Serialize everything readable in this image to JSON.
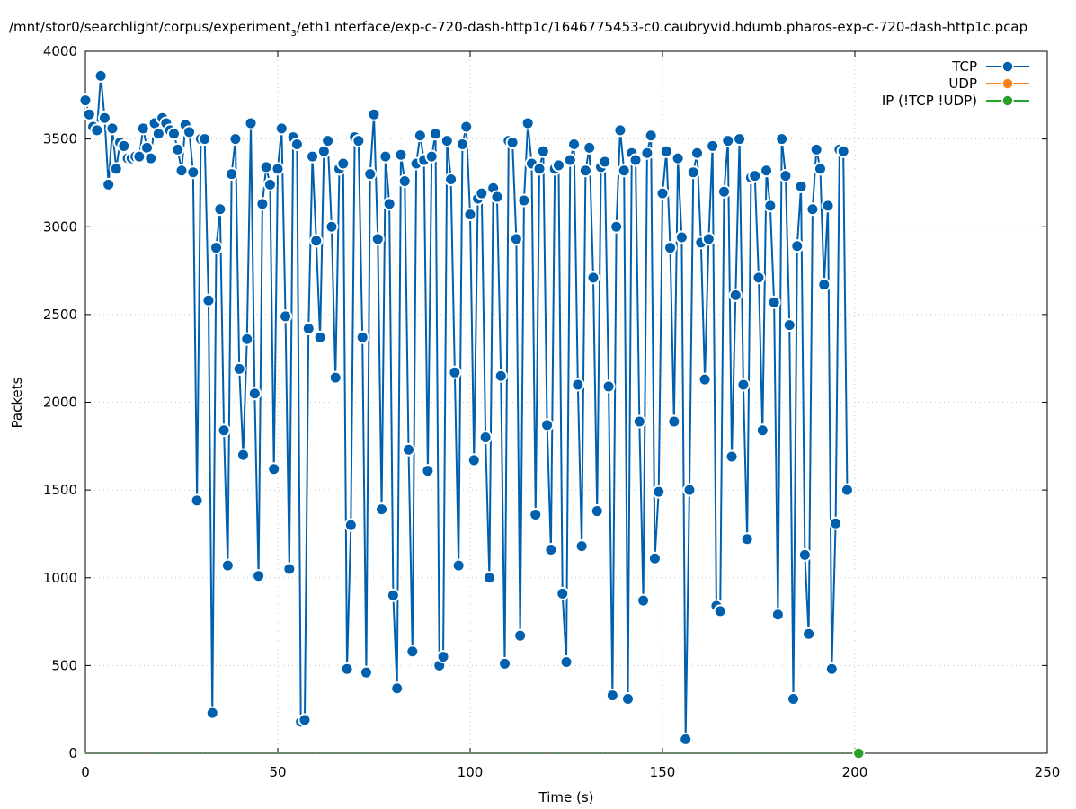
{
  "chart_data": {
    "type": "line",
    "title": "/mnt/stor0/searchlight/corpus/experiment_3/eth1_interface/exp-c-720-dash-http1c/1646775453-c0.caubryvid.hdumb.pharos-exp-c-720-dash-http1c.pcap",
    "title_parts": {
      "a": "/mnt/stor0/searchlight/corpus/experiment",
      "sub1": "3",
      "b": "/eth1",
      "sub2": "i",
      "c": "nterface/exp-c-720-dash-http1c/1646775453-c0.caubryvid.hdumb.pharos-exp-c-720-dash-http1c.pcap"
    },
    "xlabel": "Time (s)",
    "ylabel": "Packets",
    "xlim": [
      0,
      250
    ],
    "ylim": [
      0,
      4000
    ],
    "xticks": [
      "0",
      "50",
      "100",
      "150",
      "200",
      "250"
    ],
    "yticks": [
      "0",
      "500",
      "1000",
      "1500",
      "2000",
      "2500",
      "3000",
      "3500",
      "4000"
    ],
    "grid": true,
    "legend_position": "top-right",
    "series": [
      {
        "name": "TCP",
        "color": "#0060ad",
        "values": [
          3720,
          3640,
          3570,
          3550,
          3860,
          3620,
          3240,
          3560,
          3330,
          3480,
          3460,
          3390,
          3390,
          3400,
          3400,
          3560,
          3450,
          3390,
          3590,
          3530,
          3620,
          3590,
          3550,
          3530,
          3440,
          3320,
          3580,
          3540,
          3310,
          1440,
          3500,
          3500,
          2580,
          230,
          2880,
          3100,
          1840,
          1070,
          3300,
          3500,
          2190,
          1700,
          2360,
          3590,
          2050,
          1010,
          3130,
          3340,
          3240,
          1620,
          3330,
          3560,
          2490,
          1050,
          3510,
          3470,
          180,
          190,
          2420,
          3400,
          2920,
          2370,
          3430,
          3490,
          3000,
          2140,
          3330,
          3360,
          480,
          1300,
          3510,
          3490,
          2370,
          460,
          3300,
          3640,
          2930,
          1390,
          3400,
          3130,
          900,
          370,
          3410,
          3260,
          1730,
          580,
          3360,
          3520,
          3380,
          1610,
          3400,
          3530,
          500,
          550,
          3490,
          3270,
          2170,
          1070,
          3470,
          3570,
          3070,
          1670,
          3160,
          3190,
          1800,
          1000,
          3220,
          3170,
          2150,
          510,
          3490,
          3480,
          2930,
          670,
          3150,
          3590,
          3360,
          1360,
          3330,
          3430,
          1870,
          1160,
          3330,
          3350,
          910,
          520,
          3380,
          3470,
          2100,
          1180,
          3320,
          3450,
          2710,
          1380,
          3340,
          3370,
          2090,
          330,
          3000,
          3550,
          3320,
          310,
          3420,
          3380,
          1890,
          870,
          3420,
          3520,
          1110,
          1490,
          3190,
          3430,
          2880,
          1890,
          3390,
          2940,
          80,
          1500,
          3310,
          3420,
          2910,
          2130,
          2930,
          3460,
          840,
          810,
          3200,
          3490,
          1690,
          2610,
          3500,
          2100,
          1220,
          3280,
          3290,
          2710,
          1840,
          3320,
          3120,
          2570,
          790,
          3500,
          3290,
          2440,
          310,
          2890,
          3230,
          1130,
          680,
          3100,
          3440,
          3330,
          2670,
          3120,
          480,
          1310,
          3440,
          3430,
          1500
        ]
      },
      {
        "name": "UDP",
        "color": "#ff7f0e",
        "values": []
      },
      {
        "name": "IP (!TCP  !UDP)",
        "color": "#2ca02c",
        "x": [
          201
        ],
        "values": [
          0
        ]
      }
    ]
  }
}
